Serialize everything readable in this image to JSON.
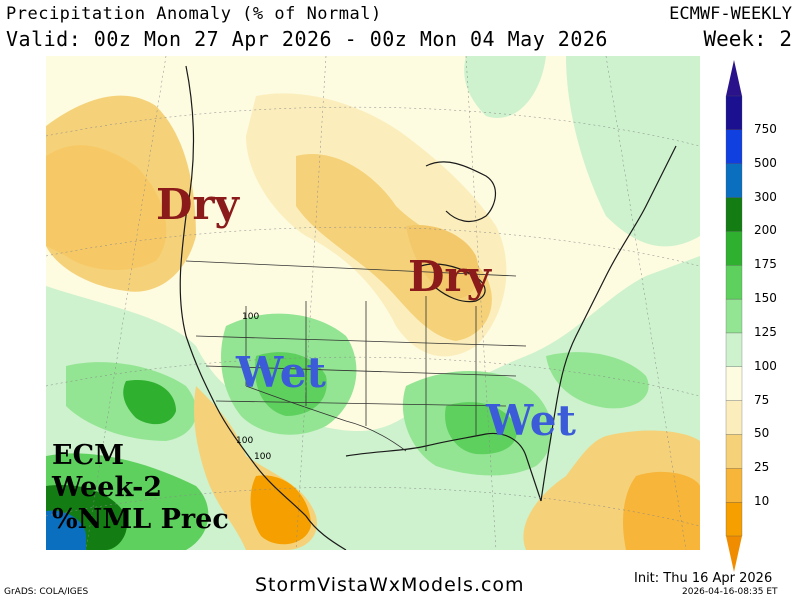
{
  "header": {
    "title": "Precipitation Anomaly (% of Normal)",
    "valid": "Valid: 00z Mon 27 Apr 2026 - 00z Mon 04 May 2026",
    "model": "ECMWF-WEEKLY",
    "week": "Week: 2"
  },
  "labels": {
    "dry_west": "Dry",
    "dry_midwest": "Dry",
    "wet_southwest": "Wet",
    "wet_southeast": "Wet",
    "ecm_line1": "ECM",
    "ecm_line2": "Week-2",
    "ecm_line3": "%NML Prec",
    "contour_100a": "100",
    "contour_100b": "100",
    "contour_100c": "100"
  },
  "colorbar": {
    "levels": [
      "10",
      "25",
      "50",
      "75",
      "100",
      "125",
      "150",
      "175",
      "200",
      "300",
      "500",
      "750"
    ],
    "colors": [
      "#f5a000",
      "#f7b53a",
      "#f5d27a",
      "#fbeebc",
      "#fdfbe0",
      "#cdf2cd",
      "#93e593",
      "#5ed05e",
      "#2fb02f",
      "#137d13",
      "#0a6fbf",
      "#1040e0",
      "#1a1090"
    ],
    "low_tip": "#f08c00",
    "high_tip": "#2a138a"
  },
  "footer": {
    "site": "StormVistaWxModels.com",
    "grads": "GrADS: COLA/IGES",
    "init": "Init: Thu 16 Apr 2026",
    "stamp": "2026-04-16-08:35 ET"
  }
}
